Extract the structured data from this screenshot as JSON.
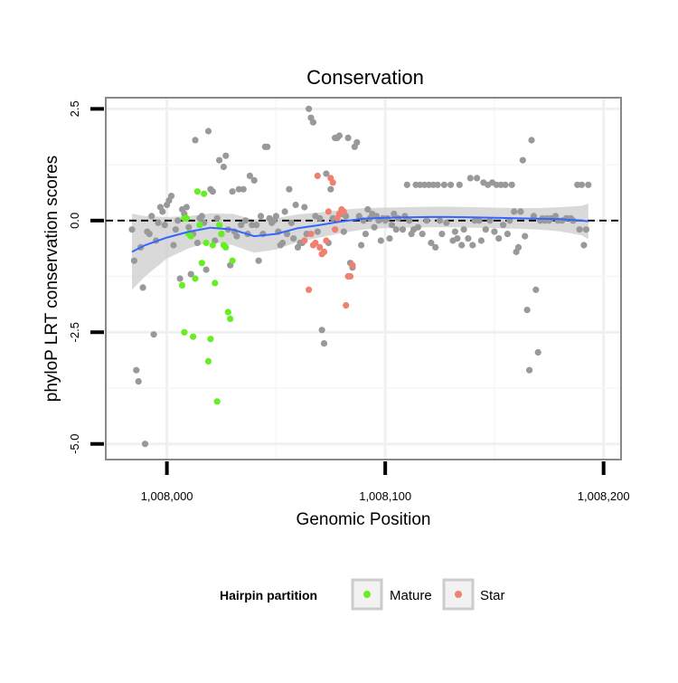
{
  "chart_data": {
    "type": "scatter",
    "title": "Conservation",
    "xlabel": "Genomic Position",
    "ylabel": "phyloP LRT conservation scores",
    "xlim": [
      1007972,
      1008208
    ],
    "ylim": [
      -5.35,
      2.75
    ],
    "x_ticks": [
      {
        "value": 1008000,
        "label": "1,008,000"
      },
      {
        "value": 1008100,
        "label": "1,008,100"
      },
      {
        "value": 1008200,
        "label": "1,008,200"
      }
    ],
    "y_ticks": [
      {
        "value": 2.5,
        "label": "2.5"
      },
      {
        "value": 0.0,
        "label": "0.0"
      },
      {
        "value": -2.5,
        "label": "-2.5"
      },
      {
        "value": -5.0,
        "label": "-5.0"
      }
    ],
    "grid": true,
    "reference_line": {
      "y": 0.0,
      "style": "dashed"
    },
    "legend": {
      "title": "Hairpin partition",
      "placement": "bottom",
      "entries": [
        {
          "label": "Mature",
          "color": "#66ee22"
        },
        {
          "label": "Star",
          "color": "#f08070"
        }
      ]
    },
    "colors": {
      "other": "#999999",
      "Mature": "#66ee22",
      "Star": "#f08070",
      "smooth": "#3366ff",
      "ribbon": "#cccccc"
    },
    "series": [
      {
        "name": "",
        "points": [
          [
            1007984,
            -0.2
          ],
          [
            1007985,
            -0.9
          ],
          [
            1007986,
            -3.35
          ],
          [
            1007987,
            -3.6
          ],
          [
            1007988,
            -0.6
          ],
          [
            1007989,
            -1.5
          ],
          [
            1007990,
            -5.0
          ],
          [
            1007991,
            -0.25
          ],
          [
            1007992,
            -0.3
          ],
          [
            1007993,
            0.1
          ],
          [
            1007994,
            -2.55
          ],
          [
            1007995,
            -0.45
          ],
          [
            1007996,
            -0.05
          ],
          [
            1007997,
            0.3
          ],
          [
            1007998,
            0.2
          ],
          [
            1007999,
            -0.1
          ],
          [
            1008000,
            0.35
          ],
          [
            1008001,
            0.45
          ],
          [
            1008002,
            0.55
          ],
          [
            1008003,
            -0.55
          ],
          [
            1008004,
            -0.2
          ],
          [
            1008005,
            0.0
          ],
          [
            1008006,
            -1.3
          ],
          [
            1008007,
            0.25
          ],
          [
            1008008,
            0.15
          ],
          [
            1008009,
            0.3
          ],
          [
            1008010,
            -0.15
          ],
          [
            1008011,
            -1.2
          ],
          [
            1008012,
            -0.3
          ],
          [
            1008013,
            1.8
          ],
          [
            1008014,
            -0.5
          ],
          [
            1008015,
            0.05
          ],
          [
            1008016,
            0.1
          ],
          [
            1008017,
            -0.05
          ],
          [
            1008018,
            -1.1
          ],
          [
            1008019,
            2.0
          ],
          [
            1008020,
            0.7
          ],
          [
            1008021,
            0.65
          ],
          [
            1008022,
            -0.45
          ],
          [
            1008023,
            0.05
          ],
          [
            1008024,
            1.35
          ],
          [
            1008025,
            -0.3
          ],
          [
            1008026,
            1.2
          ],
          [
            1008027,
            1.45
          ],
          [
            1008028,
            -0.2
          ],
          [
            1008029,
            -1.0
          ],
          [
            1008030,
            0.65
          ],
          [
            1008031,
            -0.25
          ],
          [
            1008032,
            -0.35
          ],
          [
            1008033,
            0.7
          ],
          [
            1008034,
            -0.1
          ],
          [
            1008035,
            0.7
          ],
          [
            1008036,
            0.0
          ],
          [
            1008037,
            -0.3
          ],
          [
            1008038,
            1.0
          ],
          [
            1008039,
            -0.1
          ],
          [
            1008040,
            0.9
          ],
          [
            1008041,
            -0.1
          ],
          [
            1008042,
            -0.9
          ],
          [
            1008043,
            0.1
          ],
          [
            1008044,
            -0.3
          ],
          [
            1008045,
            1.65
          ],
          [
            1008046,
            1.65
          ],
          [
            1008047,
            0.05
          ],
          [
            1008048,
            -0.05
          ],
          [
            1008049,
            0.0
          ],
          [
            1008050,
            0.1
          ],
          [
            1008051,
            -0.25
          ],
          [
            1008052,
            -0.55
          ],
          [
            1008053,
            -0.5
          ],
          [
            1008054,
            0.2
          ],
          [
            1008055,
            -0.3
          ],
          [
            1008056,
            0.7
          ],
          [
            1008057,
            -0.05
          ],
          [
            1008058,
            -0.4
          ],
          [
            1008059,
            0.35
          ],
          [
            1008060,
            -0.6
          ],
          [
            1008061,
            -0.5
          ],
          [
            1008062,
            -0.5
          ],
          [
            1008063,
            0.3
          ],
          [
            1008064,
            -0.3
          ],
          [
            1008065,
            2.5
          ],
          [
            1008066,
            2.3
          ],
          [
            1008067,
            2.2
          ],
          [
            1008068,
            0.1
          ],
          [
            1008069,
            -0.25
          ],
          [
            1008070,
            0.05
          ],
          [
            1008071,
            -2.45
          ],
          [
            1008072,
            -2.75
          ],
          [
            1008073,
            1.05
          ],
          [
            1008074,
            -0.5
          ],
          [
            1008075,
            0.7
          ],
          [
            1008076,
            0.05
          ],
          [
            1008077,
            1.85
          ],
          [
            1008078,
            1.85
          ],
          [
            1008079,
            1.9
          ],
          [
            1008080,
            0.15
          ],
          [
            1008081,
            -0.25
          ],
          [
            1008082,
            0.1
          ],
          [
            1008083,
            1.85
          ],
          [
            1008084,
            -0.95
          ],
          [
            1008085,
            -1.05
          ],
          [
            1008086,
            1.65
          ],
          [
            1008087,
            1.75
          ],
          [
            1008088,
            0.1
          ],
          [
            1008089,
            -0.55
          ],
          [
            1008090,
            0.0
          ],
          [
            1008091,
            -0.3
          ],
          [
            1008092,
            0.25
          ],
          [
            1008093,
            0.05
          ],
          [
            1008094,
            0.15
          ],
          [
            1008095,
            -0.15
          ],
          [
            1008096,
            0.1
          ],
          [
            1008097,
            0.0
          ],
          [
            1008098,
            -0.45
          ],
          [
            1008099,
            0.05
          ],
          [
            1008100,
            0.0
          ],
          [
            1008101,
            0.05
          ],
          [
            1008102,
            -0.4
          ],
          [
            1008103,
            -0.1
          ],
          [
            1008104,
            0.15
          ],
          [
            1008105,
            -0.2
          ],
          [
            1008106,
            0.05
          ],
          [
            1008108,
            -0.2
          ],
          [
            1008109,
            0.1
          ],
          [
            1008110,
            0.8
          ],
          [
            1008111,
            0.0
          ],
          [
            1008112,
            -0.3
          ],
          [
            1008113,
            -0.2
          ],
          [
            1008114,
            0.8
          ],
          [
            1008115,
            -0.15
          ],
          [
            1008116,
            0.8
          ],
          [
            1008117,
            -0.3
          ],
          [
            1008118,
            0.8
          ],
          [
            1008119,
            0.0
          ],
          [
            1008120,
            0.8
          ],
          [
            1008121,
            -0.5
          ],
          [
            1008122,
            0.8
          ],
          [
            1008123,
            -0.6
          ],
          [
            1008124,
            0.8
          ],
          [
            1008125,
            0.0
          ],
          [
            1008126,
            -0.3
          ],
          [
            1008127,
            0.8
          ],
          [
            1008128,
            -0.05
          ],
          [
            1008130,
            0.8
          ],
          [
            1008131,
            -0.45
          ],
          [
            1008132,
            -0.25
          ],
          [
            1008133,
            -0.4
          ],
          [
            1008134,
            0.8
          ],
          [
            1008135,
            -0.55
          ],
          [
            1008136,
            -0.2
          ],
          [
            1008138,
            -0.4
          ],
          [
            1008139,
            0.95
          ],
          [
            1008140,
            -0.55
          ],
          [
            1008141,
            0.0
          ],
          [
            1008142,
            0.95
          ],
          [
            1008143,
            0.0
          ],
          [
            1008144,
            -0.45
          ],
          [
            1008145,
            0.85
          ],
          [
            1008146,
            -0.2
          ],
          [
            1008147,
            0.8
          ],
          [
            1008148,
            0.0
          ],
          [
            1008149,
            0.85
          ],
          [
            1008150,
            -0.25
          ],
          [
            1008151,
            0.8
          ],
          [
            1008152,
            -0.4
          ],
          [
            1008153,
            0.8
          ],
          [
            1008154,
            -0.1
          ],
          [
            1008155,
            0.8
          ],
          [
            1008156,
            -0.3
          ],
          [
            1008157,
            0.0
          ],
          [
            1008158,
            0.8
          ],
          [
            1008159,
            0.2
          ],
          [
            1008160,
            -0.7
          ],
          [
            1008161,
            -0.6
          ],
          [
            1008162,
            0.2
          ],
          [
            1008163,
            1.35
          ],
          [
            1008164,
            -0.35
          ],
          [
            1008165,
            -2.0
          ],
          [
            1008166,
            -3.35
          ],
          [
            1008167,
            1.8
          ],
          [
            1008168,
            0.1
          ],
          [
            1008169,
            -1.55
          ],
          [
            1008170,
            -2.95
          ],
          [
            1008171,
            0.0
          ],
          [
            1008172,
            0.05
          ],
          [
            1008173,
            0.0
          ],
          [
            1008174,
            0.05
          ],
          [
            1008175,
            0.0
          ],
          [
            1008176,
            0.05
          ],
          [
            1008178,
            0.1
          ],
          [
            1008179,
            0.0
          ],
          [
            1008181,
            0.0
          ],
          [
            1008183,
            0.05
          ],
          [
            1008185,
            0.05
          ],
          [
            1008186,
            0.0
          ],
          [
            1008188,
            0.8
          ],
          [
            1008189,
            -0.2
          ],
          [
            1008190,
            0.8
          ],
          [
            1008191,
            -0.55
          ],
          [
            1008192,
            -0.2
          ],
          [
            1008193,
            0.8
          ]
        ]
      },
      {
        "name": "Mature",
        "points": [
          [
            1008007,
            -1.45
          ],
          [
            1008008,
            -2.5
          ],
          [
            1008008,
            0.05
          ],
          [
            1008009,
            0.05
          ],
          [
            1008010,
            -0.3
          ],
          [
            1008011,
            -0.35
          ],
          [
            1008012,
            -2.6
          ],
          [
            1008013,
            -1.3
          ],
          [
            1008014,
            0.65
          ],
          [
            1008015,
            -0.1
          ],
          [
            1008016,
            -0.95
          ],
          [
            1008017,
            0.6
          ],
          [
            1008018,
            -0.5
          ],
          [
            1008019,
            -3.15
          ],
          [
            1008020,
            -2.65
          ],
          [
            1008021,
            -0.55
          ],
          [
            1008022,
            -1.4
          ],
          [
            1008023,
            -4.05
          ],
          [
            1008024,
            -0.1
          ],
          [
            1008025,
            -0.3
          ],
          [
            1008026,
            -0.55
          ],
          [
            1008027,
            -0.6
          ],
          [
            1008028,
            -2.05
          ],
          [
            1008029,
            -2.2
          ],
          [
            1008030,
            -0.9
          ]
        ]
      },
      {
        "name": "Star",
        "points": [
          [
            1008063,
            -0.45
          ],
          [
            1008065,
            -1.55
          ],
          [
            1008066,
            -0.3
          ],
          [
            1008067,
            -0.55
          ],
          [
            1008068,
            -0.5
          ],
          [
            1008069,
            1.0
          ],
          [
            1008070,
            -0.6
          ],
          [
            1008071,
            -0.75
          ],
          [
            1008072,
            -0.7
          ],
          [
            1008073,
            -0.45
          ],
          [
            1008074,
            0.2
          ],
          [
            1008075,
            0.95
          ],
          [
            1008076,
            0.85
          ],
          [
            1008077,
            -0.2
          ],
          [
            1008078,
            0.05
          ],
          [
            1008079,
            0.15
          ],
          [
            1008080,
            0.25
          ],
          [
            1008081,
            0.2
          ],
          [
            1008082,
            -1.9
          ],
          [
            1008083,
            -1.25
          ],
          [
            1008084,
            -1.25
          ],
          [
            1008085,
            -1.0
          ]
        ]
      }
    ],
    "smooth_line": {
      "x": [
        1007984,
        1007990,
        1008000,
        1008010,
        1008020,
        1008030,
        1008040,
        1008050,
        1008060,
        1008070,
        1008080,
        1008090,
        1008100,
        1008110,
        1008120,
        1008130,
        1008140,
        1008150,
        1008160,
        1008170,
        1008180,
        1008190,
        1008193
      ],
      "y": [
        -0.7,
        -0.55,
        -0.38,
        -0.25,
        -0.16,
        -0.2,
        -0.35,
        -0.3,
        -0.17,
        -0.1,
        -0.02,
        0.04,
        0.06,
        0.07,
        0.08,
        0.08,
        0.07,
        0.06,
        0.05,
        0.04,
        0.03,
        0.0,
        -0.02
      ],
      "lower": [
        -1.55,
        -1.25,
        -0.85,
        -0.62,
        -0.48,
        -0.55,
        -0.72,
        -0.65,
        -0.48,
        -0.38,
        -0.28,
        -0.2,
        -0.17,
        -0.16,
        -0.15,
        -0.15,
        -0.16,
        -0.17,
        -0.18,
        -0.2,
        -0.24,
        -0.33,
        -0.42
      ],
      "upper": [
        0.15,
        0.1,
        0.08,
        0.1,
        0.16,
        0.15,
        0.02,
        0.05,
        0.14,
        0.18,
        0.24,
        0.28,
        0.29,
        0.3,
        0.31,
        0.31,
        0.3,
        0.29,
        0.28,
        0.28,
        0.3,
        0.33,
        0.38
      ]
    }
  }
}
